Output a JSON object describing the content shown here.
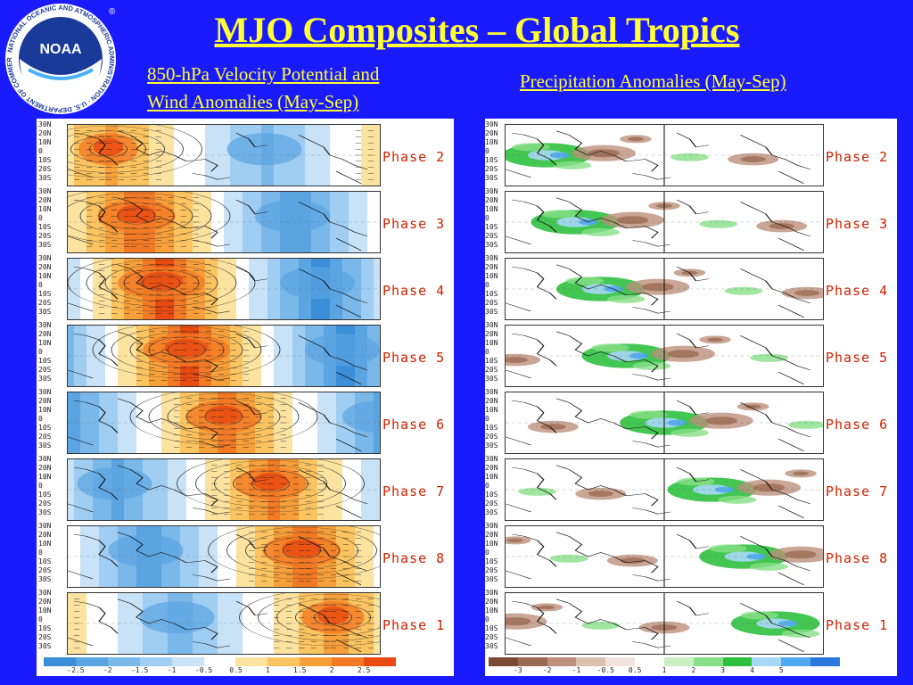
{
  "header": {
    "title": "MJO Composites – Global Tropics",
    "logo_text": "NOAA",
    "logo_ring_text": "NATIONAL OCEANIC AND ATMOSPHERIC ADMINISTRATION · U.S. DEPARTMENT OF COMMERCE"
  },
  "left_panel": {
    "subtitle_line1": "850-hPa Velocity Potential and",
    "subtitle_line2": "Wind Anomalies (May-Sep)",
    "lat_labels": [
      "30N",
      "20N",
      "10N",
      "0",
      "10S",
      "20S",
      "30S"
    ],
    "colorbar_labels": [
      "-2.5",
      "-2",
      "-1.5",
      "-1",
      "-0.5",
      "0.5",
      "1",
      "1.5",
      "2",
      "2.5"
    ],
    "colorbar_colors": [
      "#3a8fd8",
      "#5aa4e2",
      "#7ab8ea",
      "#a0cdf2",
      "#c8e2f8",
      "#ffffff",
      "#fde3a0",
      "#fbc460",
      "#f7a03a",
      "#f27a24",
      "#e84a12"
    ]
  },
  "right_panel": {
    "subtitle": "Precipitation Anomalies (May-Sep)",
    "lat_labels": [
      "30N",
      "20N",
      "10N",
      "0",
      "10S",
      "20S",
      "30S"
    ],
    "colorbar_labels": [
      "-3",
      "-2",
      "-1",
      "-0.5",
      "0.5",
      "1",
      "2",
      "3",
      "4",
      "5"
    ],
    "colorbar_colors": [
      "#7a4a32",
      "#9c6a52",
      "#bc907a",
      "#dcc0b0",
      "#f2e4dc",
      "#ffffff",
      "#c8f0c0",
      "#88e088",
      "#30c040",
      "#a8d8f8",
      "#50a8ee",
      "#2a78e0"
    ]
  },
  "phases": [
    {
      "label": "Phase  2",
      "vp_center": 0.13,
      "vp_sign": 1,
      "vp_strength": 0.55
    },
    {
      "label": "Phase  3",
      "vp_center": 0.22,
      "vp_sign": 1,
      "vp_strength": 0.85
    },
    {
      "label": "Phase  4",
      "vp_center": 0.3,
      "vp_sign": 1,
      "vp_strength": 1.0
    },
    {
      "label": "Phase  5",
      "vp_center": 0.38,
      "vp_sign": 1,
      "vp_strength": 1.0
    },
    {
      "label": "Phase  6",
      "vp_center": 0.5,
      "vp_sign": 1,
      "vp_strength": 0.8
    },
    {
      "label": "Phase  7",
      "vp_center": 0.65,
      "vp_sign": 1,
      "vp_strength": 0.75
    },
    {
      "label": "Phase  8",
      "vp_center": 0.75,
      "vp_sign": 1,
      "vp_strength": 0.85
    },
    {
      "label": "Phase  1",
      "vp_center": 0.85,
      "vp_sign": 1,
      "vp_strength": 0.6
    }
  ]
}
